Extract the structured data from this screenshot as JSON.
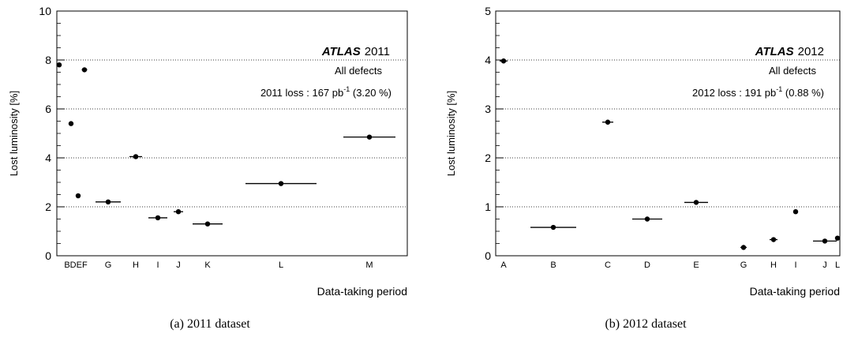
{
  "chart_data": [
    {
      "type": "scatter",
      "ylabel": "Lost luminosity [%]",
      "xlabel": "Data-taking period",
      "ylim": [
        0,
        10
      ],
      "yticks": [
        0,
        2,
        4,
        6,
        8,
        10
      ],
      "grid": "horizontal dotted",
      "annotation": {
        "experiment": "ATLAS",
        "year": "2011",
        "line2": "All defects",
        "loss_prefix": "2011 loss : 167 pb",
        "loss_sup": "-1",
        "loss_suffix": " (3.20 %)"
      },
      "caption": "(a) 2011 dataset",
      "tick_labels": [
        "BDEF",
        "G",
        "H",
        "I",
        "J",
        "K",
        "L",
        "M"
      ],
      "points": [
        {
          "period": "B",
          "value": 7.8,
          "hw": 0.0
        },
        {
          "period": "D",
          "value": 5.4,
          "hw": 0.3
        },
        {
          "period": "E",
          "value": 2.45,
          "hw": 0.0
        },
        {
          "period": "F",
          "value": 7.6,
          "hw": 0.35
        },
        {
          "period": "G",
          "value": 2.2,
          "hw": 1.6
        },
        {
          "period": "H",
          "value": 4.05,
          "hw": 0.8
        },
        {
          "period": "I",
          "value": 1.55,
          "hw": 1.2
        },
        {
          "period": "J",
          "value": 1.8,
          "hw": 0.6
        },
        {
          "period": "K",
          "value": 1.3,
          "hw": 1.9
        },
        {
          "period": "L",
          "value": 2.95,
          "hw": 4.5
        },
        {
          "period": "M",
          "value": 4.85,
          "hw": 3.3
        }
      ]
    },
    {
      "type": "scatter",
      "ylabel": "Lost luminosity [%]",
      "xlabel": "Data-taking period",
      "ylim": [
        0,
        5
      ],
      "yticks": [
        0,
        1,
        2,
        3,
        4,
        5
      ],
      "grid": "horizontal dotted",
      "annotation": {
        "experiment": "ATLAS",
        "year": "2012",
        "line2": "All defects",
        "loss_prefix": "2012 loss : 191 pb",
        "loss_sup": "-1",
        "loss_suffix": " (0.88 %)"
      },
      "caption": "(b) 2012 dataset",
      "tick_labels": [
        "A",
        "B",
        "C",
        "D",
        "E",
        "G",
        "H",
        "I",
        "J",
        "L"
      ],
      "points": [
        {
          "period": "A",
          "value": 3.98,
          "hw": 0.5
        },
        {
          "period": "B",
          "value": 0.58,
          "hw": 2.9
        },
        {
          "period": "C",
          "value": 2.73,
          "hw": 0.7
        },
        {
          "period": "D",
          "value": 0.75,
          "hw": 1.9
        },
        {
          "period": "E",
          "value": 1.09,
          "hw": 1.5
        },
        {
          "period": "G",
          "value": 0.17,
          "hw": 0.4
        },
        {
          "period": "H",
          "value": 0.33,
          "hw": 0.5
        },
        {
          "period": "I",
          "value": 0.9,
          "hw": 0.3
        },
        {
          "period": "J",
          "value": 0.3,
          "hw": 1.5
        },
        {
          "period": "L",
          "value": 0.36,
          "hw": 0.3
        }
      ]
    }
  ]
}
